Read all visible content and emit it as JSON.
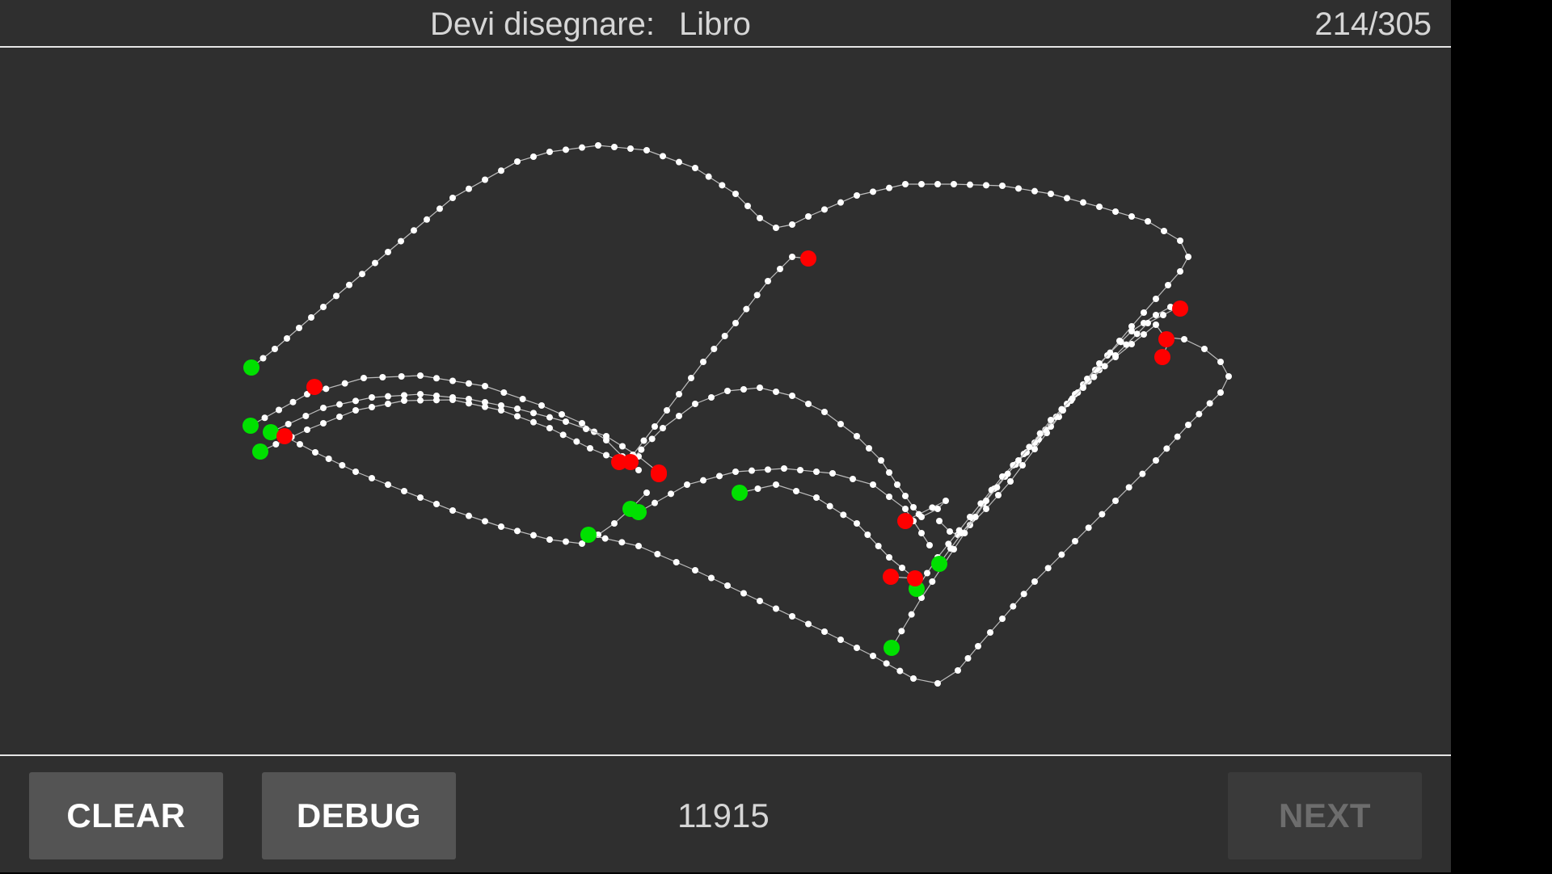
{
  "header": {
    "prompt_label": "Devi disegnare:",
    "prompt_word": "Libro",
    "progress_text": "214/305"
  },
  "footer": {
    "clear_label": "CLEAR",
    "debug_label": "DEBUG",
    "score_text": "11915",
    "next_label": "NEXT"
  },
  "colors": {
    "background": "#2f2f2f",
    "stroke_point": "#ffffff",
    "stroke_start": "#00e000",
    "stroke_end": "#ff0000",
    "button_bg": "#545454",
    "button_disabled_bg": "#3a3a3a"
  }
}
